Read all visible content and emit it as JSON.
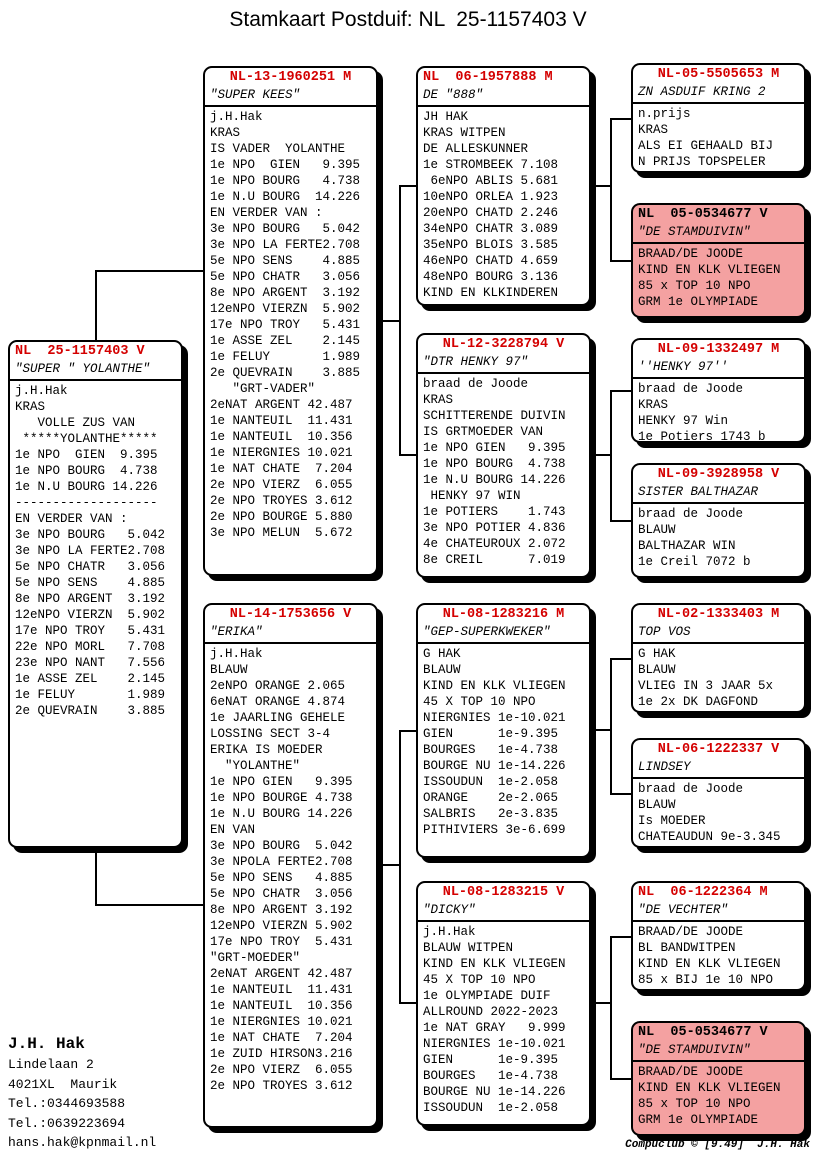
{
  "title": "Stamkaart Postduif: NL  25-1157403 V",
  "boxes": [
    {
      "id": "subject",
      "align": "left",
      "variant": "normal",
      "ring": "NL  25-1157403 V",
      "name": "\"SUPER \" YOLANTHE\"",
      "lines": [
        "j.H.Hak",
        "KRAS",
        "   VOLLE ZUS VAN",
        " *****YOLANTHE*****",
        "1e NPO  GIEN  9.395",
        "1e NPO BOURG  4.738",
        "1e N.U BOURG 14.226",
        "-------------------",
        "EN VERDER VAN :",
        "3e NPO BOURG   5.042",
        "3e NPO LA FERTE2.708",
        "5e NPO CHATR   3.056",
        "5e NPO SENS    4.885",
        "8e NPO ARGENT  3.192",
        "12eNPO VIERZN  5.902",
        "17e NPO TROY   5.431",
        "22e NPO MORL   7.708",
        "23e NPO NANT   7.556",
        "1e ASSE ZEL    2.145",
        "1e FELUY       1.989",
        "2e QUEVRAIN    3.885"
      ]
    },
    {
      "id": "kees",
      "align": "center",
      "variant": "normal",
      "ring": "NL-13-1960251 M",
      "name": "\"SUPER KEES\"",
      "lines": [
        "j.H.Hak",
        "KRAS",
        "IS VADER  YOLANTHE",
        "1e NPO  GIEN   9.395",
        "1e NPO BOURG   4.738",
        "1e N.U BOURG  14.226",
        "EN VERDER VAN :",
        "3e NPO BOURG   5.042",
        "3e NPO LA FERTE2.708",
        "5e NPO SENS    4.885",
        "5e NPO CHATR   3.056",
        "8e NPO ARGENT  3.192",
        "12eNPO VIERZN  5.902",
        "17e NPO TROY   5.431",
        "1e ASSE ZEL    2.145",
        "1e FELUY       1.989",
        "2e QUEVRAIN    3.885",
        "   \"GRT-VADER\"",
        "2eNAT ARGENT 42.487",
        "1e NANTEUIL  11.431",
        "1e NANTEUIL  10.356",
        "1e NIERGNIES 10.021",
        "1e NAT CHATE  7.204",
        "2e NPO VIERZ  6.055",
        "2e NPO TROYES 3.612",
        "2e NPO BOURGE 5.880",
        "3e NPO MELUN  5.672"
      ]
    },
    {
      "id": "erika",
      "align": "center",
      "variant": "normal",
      "ring": "NL-14-1753656 V",
      "name": "\"ERIKA\"",
      "lines": [
        "j.H.Hak",
        "BLAUW",
        "2eNPO ORANGE 2.065",
        "6eNAT ORANGE 4.874",
        "1e JAARLING GEHELE",
        "LOSSING SECT 3-4",
        "ERIKA IS MOEDER",
        "  \"YOLANTHE\"",
        "1e NPO GIEN   9.395",
        "1e NPO BOURGE 4.738",
        "1e N.U BOURG 14.226",
        "EN VAN",
        "3e NPO BOURG  5.042",
        "3e NPOLA FERTE2.708",
        "5e NPO SENS   4.885",
        "5e NPO CHATR  3.056",
        "8e NPO ARGENT 3.192",
        "12eNPO VIERZN 5.902",
        "17e NPO TROY  5.431",
        "\"GRT-MOEDER\"",
        "2eNAT ARGENT 42.487",
        "1e NANTEUIL  11.431",
        "1e NANTEUIL  10.356",
        "1e NIERGNIES 10.021",
        "1e NAT CHATE  7.204",
        "1e ZUID HIRSON3.216",
        "2e NPO VIERZ  6.055",
        "2e NPO TROYES 3.612"
      ]
    },
    {
      "id": "b888",
      "align": "left",
      "variant": "normal",
      "ring": "NL  06-1957888 M",
      "name": "DE \"888\"",
      "lines": [
        "JH HAK",
        "KRAS WITPEN",
        "DE ALLESKUNNER",
        "1e STROMBEEK 7.108",
        " 6eNPO ABLIS 5.681",
        "10eNPO ORLEA 1.923",
        "20eNPO CHATD 2.246",
        "34eNPO CHATR 3.089",
        "35eNPO BLOIS 3.585",
        "46eNPO CHATD 4.659",
        "48eNPO BOURG 3.136",
        "KIND EN KLKINDEREN"
      ]
    },
    {
      "id": "dtr",
      "align": "center",
      "variant": "normal",
      "ring": "NL-12-3228794 V",
      "name": "\"DTR HENKY 97\"",
      "lines": [
        "braad de Joode",
        "KRAS",
        "SCHITTERENDE DUIVIN",
        "IS GRTMOEDER VAN",
        "1e NPO GIEN   9.395",
        "1e NPO BOURG  4.738",
        "1e N.U BOURG 14.226",
        " HENKY 97 WIN",
        "1e POTIERS    1.743",
        "3e NPO POTIER 4.836",
        "4e CHATEUROUX 2.072",
        "8e CREIL      7.019"
      ]
    },
    {
      "id": "gep",
      "align": "center",
      "variant": "normal",
      "ring": "NL-08-1283216 M",
      "name": "\"GEP-SUPERKWEKER\"",
      "lines": [
        "G HAK",
        "BLAUW",
        "KIND EN KLK VLIEGEN",
        "45 X TOP 10 NPO",
        "NIERGNIES 1e-10.021",
        "GIEN      1e-9.395",
        "BOURGES   1e-4.738",
        "BOURGE NU 1e-14.226",
        "ISSOUDUN  1e-2.058",
        "ORANGE    2e-2.065",
        "SALBRIS   2e-3.835",
        "PITHIVIERS 3e-6.699"
      ]
    },
    {
      "id": "dicky",
      "align": "center",
      "variant": "normal",
      "ring": "NL-08-1283215 V",
      "name": "\"DICKY\"",
      "lines": [
        "j.H.Hak",
        "BLAUW WITPEN",
        "KIND EN KLK VLIEGEN",
        "45 X TOP 10 NPO",
        "1e OLYMPIADE DUIF",
        "ALLROUND 2022-2023",
        "1e NAT GRAY   9.999",
        "NIERGNIES 1e-10.021",
        "GIEN      1e-9.395",
        "BOURGES   1e-4.738",
        "BOURGE NU 1e-14.226",
        "ISSOUDUN  1e-2.058"
      ]
    },
    {
      "id": "zn",
      "align": "center",
      "variant": "normal",
      "ring": "NL-05-5505653 M",
      "name": "ZN ASDUIF KRING 2",
      "lines": [
        "n.prijs",
        "KRAS",
        "ALS EI GEHAALD BIJ",
        "N PRIJS TOPSPELER"
      ]
    },
    {
      "id": "stam1",
      "align": "left",
      "variant": "pink",
      "ring": "NL  05-0534677 V",
      "name": "\"DE STAMDUIVIN\"",
      "lines": [
        "BRAAD/DE JOODE",
        "KIND EN KLK VLIEGEN",
        "85 x TOP 10 NPO",
        "GRM 1e OLYMPIADE"
      ]
    },
    {
      "id": "henky",
      "align": "center",
      "variant": "normal",
      "ring": "NL-09-1332497 M",
      "name": "''HENKY 97''",
      "lines": [
        "braad de Joode",
        "KRAS",
        "HENKY 97 Win",
        "1e Potiers 1743 b"
      ]
    },
    {
      "id": "sister",
      "align": "center",
      "variant": "normal",
      "ring": "NL-09-3928958 V",
      "name": "SISTER BALTHAZAR",
      "lines": [
        "braad de Joode",
        "BLAUW",
        "BALTHAZAR WIN",
        "1e Creil 7072 b"
      ]
    },
    {
      "id": "topvos",
      "align": "center",
      "variant": "normal",
      "ring": "NL-02-1333403 M",
      "name": "TOP VOS",
      "lines": [
        "G HAK",
        "BLAUW",
        "VLIEG IN 3 JAAR 5x",
        "1e 2x DK DAGFOND"
      ]
    },
    {
      "id": "lindsey",
      "align": "center",
      "variant": "normal",
      "ring": "NL-06-1222337 V",
      "name": "LINDSEY",
      "lines": [
        "braad de Joode",
        "BLAUW",
        "Is MOEDER",
        "CHATEAUDUN 9e-3.345"
      ]
    },
    {
      "id": "vechter",
      "align": "left",
      "variant": "normal",
      "ring": "NL  06-1222364 M",
      "name": "\"DE VECHTER\"",
      "lines": [
        "BRAAD/DE JOODE",
        "BL BANDWITPEN",
        "KIND EN KLK VLIEGEN",
        "85 x BIJ 1e 10 NPO"
      ]
    },
    {
      "id": "stam2",
      "align": "left",
      "variant": "pink",
      "ring": "NL  05-0534677 V",
      "name": "\"DE STAMDUIVIN\"",
      "lines": [
        "BRAAD/DE JOODE",
        "KIND EN KLK VLIEGEN",
        "85 x TOP 10 NPO",
        "GRM 1e OLYMPIADE"
      ]
    }
  ],
  "owner": {
    "name": "J.H. Hak",
    "lines": [
      "Lindelaan 2",
      "4021XL  Maurik",
      "Tel.:0344693588",
      "Tel.:0639223694",
      "hans.hak@kpnmail.nl"
    ]
  },
  "footer": "Compuclub © [9.49]  J.H. Hak",
  "colors": {
    "ring_red": "#d40000",
    "highlight_pink": "#f4a1a1",
    "line_black": "#000000"
  }
}
